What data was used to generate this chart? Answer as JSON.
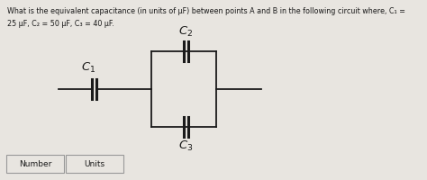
{
  "title_line1": "What is the equivalent capacitance (in units of μF) between points A and B in the following circuit where, C₁ =",
  "title_line2": "25 μF, C₂ = 50 μF, C₃ = 40 μF.",
  "bg_color": "#e8e5e0",
  "text_color": "#1a1a1a",
  "label_C1": "$C_1$",
  "label_C2": "$C_2$",
  "label_C3": "$C_3$",
  "button1": "Number",
  "button2": "Units",
  "figsize": [
    4.74,
    2.01
  ],
  "dpi": 100
}
